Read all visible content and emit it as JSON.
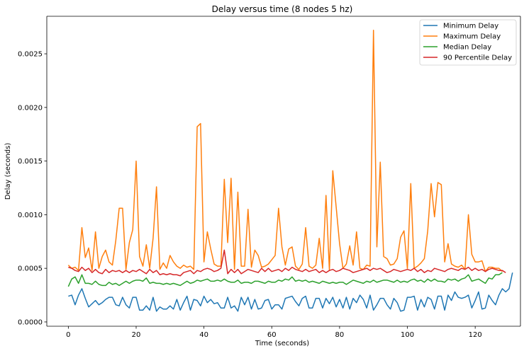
{
  "chart_data": {
    "type": "line",
    "title": "Delay versus time (8 nodes 5 hz)",
    "xlabel": "Time (seconds)",
    "ylabel": "Delay (seconds)",
    "xlim": [
      -6.35,
      133.35
    ],
    "ylim": [
      -4e-05,
      0.00285
    ],
    "xticks": [
      0,
      20,
      40,
      60,
      80,
      100,
      120
    ],
    "xtick_labels": [
      "0",
      "20",
      "40",
      "60",
      "80",
      "100",
      "120"
    ],
    "yticks": [
      0.0,
      0.0005,
      0.001,
      0.0015,
      0.002,
      0.0025
    ],
    "ytick_labels": [
      "0.0000",
      "0.0005",
      "0.0010",
      "0.0015",
      "0.0020",
      "0.0025"
    ],
    "grid": false,
    "legend_position": "top-right",
    "series": [
      {
        "name": "Minimum Delay",
        "color": "#1f77b4",
        "values": [
          0.00024,
          0.00025,
          0.00016,
          0.00025,
          0.00031,
          0.00022,
          0.00014,
          0.00017,
          0.0002,
          0.00016,
          0.00018,
          0.00021,
          0.00023,
          0.00023,
          0.00016,
          0.00015,
          0.00023,
          0.00016,
          0.00013,
          0.00023,
          0.00023,
          0.00011,
          0.00011,
          0.00015,
          0.00011,
          0.00023,
          0.0001,
          0.00014,
          0.00012,
          0.00012,
          0.00015,
          0.00012,
          0.00021,
          0.00011,
          0.00018,
          0.00024,
          0.00011,
          0.00021,
          0.0002,
          0.00015,
          0.00024,
          0.00018,
          0.00021,
          0.00017,
          0.00018,
          0.00013,
          0.00013,
          0.00023,
          0.00013,
          0.00015,
          0.0001,
          0.00023,
          0.00016,
          0.00023,
          0.00012,
          0.00021,
          0.00012,
          0.00013,
          0.0002,
          0.00021,
          0.00012,
          0.00016,
          0.00016,
          0.00012,
          0.00022,
          0.00023,
          0.00024,
          0.00019,
          0.00015,
          0.00022,
          0.00024,
          0.00013,
          0.00013,
          0.00022,
          0.00022,
          0.00013,
          0.00022,
          0.00017,
          0.00023,
          0.00014,
          0.00021,
          0.00013,
          0.00023,
          0.00012,
          0.00022,
          0.00018,
          0.00025,
          0.00021,
          0.00013,
          0.00025,
          0.00011,
          0.00016,
          0.00022,
          0.00022,
          0.00016,
          0.00012,
          0.00022,
          0.00018,
          0.0001,
          0.00011,
          0.00023,
          0.00023,
          0.00024,
          0.00011,
          0.00021,
          0.00014,
          0.00023,
          0.00021,
          0.00012,
          0.00024,
          0.00024,
          0.00011,
          0.00025,
          0.0002,
          0.00028,
          0.00023,
          0.00022,
          0.00023,
          0.00025,
          0.00013,
          0.0002,
          0.00028,
          0.00012,
          0.00013,
          0.00025,
          0.0002,
          0.00016,
          0.00025,
          0.00031,
          0.00028,
          0.00031,
          0.00046
        ]
      },
      {
        "name": "Maximum Delay",
        "color": "#ff7f0e",
        "values": [
          0.00053,
          0.0005,
          0.00051,
          0.00048,
          0.00088,
          0.0006,
          0.00069,
          0.00048,
          0.00084,
          0.0005,
          0.00061,
          0.00067,
          0.00056,
          0.00053,
          0.00076,
          0.00106,
          0.00106,
          0.00049,
          0.00074,
          0.00086,
          0.0015,
          0.00061,
          0.00052,
          0.00072,
          0.0005,
          0.00078,
          0.00126,
          0.00049,
          0.00055,
          0.0005,
          0.00062,
          0.00056,
          0.00052,
          0.0005,
          0.00053,
          0.00051,
          0.00052,
          0.00049,
          0.00182,
          0.00185,
          0.00056,
          0.00084,
          0.00068,
          0.00054,
          0.00052,
          0.00052,
          0.00133,
          0.00074,
          0.00134,
          0.00049,
          0.00121,
          0.00052,
          0.00052,
          0.00105,
          0.00051,
          0.00067,
          0.00062,
          0.00051,
          0.00052,
          0.00054,
          0.00058,
          0.00062,
          0.00106,
          0.0007,
          0.00053,
          0.00068,
          0.0007,
          0.00052,
          0.00049,
          0.00054,
          0.00088,
          0.00052,
          0.0005,
          0.00053,
          0.00078,
          0.0005,
          0.00118,
          0.00048,
          0.00141,
          0.00107,
          0.00073,
          0.0005,
          0.00054,
          0.00071,
          0.00053,
          0.00084,
          0.0005,
          0.00049,
          0.00053,
          0.00052,
          0.00272,
          0.0007,
          0.00149,
          0.00061,
          0.00059,
          0.00053,
          0.00054,
          0.00059,
          0.00079,
          0.00085,
          0.0005,
          0.00129,
          0.0005,
          0.00052,
          0.00055,
          0.00059,
          0.00085,
          0.00129,
          0.00098,
          0.0013,
          0.00128,
          0.00056,
          0.00073,
          0.00054,
          0.00052,
          0.00051,
          0.00053,
          0.00049,
          0.001,
          0.00063,
          0.00056,
          0.00056,
          0.00057,
          0.00047,
          0.00051,
          0.00051,
          0.0005,
          0.0005,
          0.00047
        ]
      },
      {
        "name": "Median Delay",
        "color": "#2ca02c",
        "values": [
          0.00033,
          0.0004,
          0.00042,
          0.00036,
          0.00044,
          0.00036,
          0.00036,
          0.00035,
          0.00038,
          0.00035,
          0.00034,
          0.00034,
          0.00037,
          0.00035,
          0.00036,
          0.00034,
          0.00036,
          0.00038,
          0.00036,
          0.00038,
          0.00039,
          0.00039,
          0.00038,
          0.00041,
          0.00036,
          0.00037,
          0.00036,
          0.00036,
          0.00035,
          0.00036,
          0.00035,
          0.00036,
          0.00035,
          0.00034,
          0.00036,
          0.00038,
          0.00036,
          0.00037,
          0.00039,
          0.00038,
          0.00039,
          0.0004,
          0.00038,
          0.00038,
          0.00039,
          0.00038,
          0.0004,
          0.00038,
          0.00037,
          0.00037,
          0.00039,
          0.00036,
          0.00037,
          0.00037,
          0.00036,
          0.00038,
          0.00038,
          0.00037,
          0.00036,
          0.00038,
          0.00037,
          0.00037,
          0.00039,
          0.00038,
          0.0004,
          0.00039,
          0.00042,
          0.00038,
          0.00039,
          0.00038,
          0.00039,
          0.00037,
          0.00038,
          0.00037,
          0.00036,
          0.00038,
          0.00037,
          0.00036,
          0.00037,
          0.00036,
          0.00037,
          0.00037,
          0.00035,
          0.00037,
          0.00039,
          0.00038,
          0.00037,
          0.00036,
          0.00038,
          0.00037,
          0.00039,
          0.00037,
          0.00038,
          0.00039,
          0.00039,
          0.00038,
          0.00037,
          0.00039,
          0.00037,
          0.00038,
          0.00037,
          0.00039,
          0.0004,
          0.00038,
          0.00039,
          0.00037,
          0.0004,
          0.00038,
          0.0004,
          0.00038,
          0.00038,
          0.00037,
          0.0004,
          0.00039,
          0.0004,
          0.00038,
          0.0004,
          0.00041,
          0.00044,
          0.00038,
          0.00039,
          0.0004,
          0.00038,
          0.00036,
          0.00041,
          0.0004,
          0.00044,
          0.00044,
          0.00046
        ]
      },
      {
        "name": "90 Percentile Delay",
        "color": "#d62728",
        "values": [
          0.00051,
          0.0005,
          0.00048,
          0.00047,
          0.00051,
          0.00048,
          0.0005,
          0.00046,
          0.00049,
          0.00046,
          0.00045,
          0.00049,
          0.00046,
          0.00048,
          0.00047,
          0.00048,
          0.00046,
          0.00048,
          0.00046,
          0.00048,
          0.00047,
          0.00049,
          0.00047,
          0.00045,
          0.00049,
          0.00046,
          0.00048,
          0.00044,
          0.00045,
          0.00044,
          0.00045,
          0.00044,
          0.00044,
          0.00043,
          0.00046,
          0.00047,
          0.00048,
          0.00045,
          0.00048,
          0.00047,
          0.00049,
          0.0005,
          0.00049,
          0.00047,
          0.00048,
          0.0005,
          0.00067,
          0.00045,
          0.00049,
          0.00046,
          0.00049,
          0.00045,
          0.00047,
          0.00049,
          0.00048,
          0.00047,
          0.00046,
          0.0005,
          0.00047,
          0.0005,
          0.00047,
          0.00048,
          0.00049,
          0.00047,
          0.0005,
          0.00048,
          0.00051,
          0.00049,
          0.00048,
          0.00047,
          0.00049,
          0.00047,
          0.00048,
          0.00049,
          0.00046,
          0.00048,
          0.00046,
          0.00048,
          0.00049,
          0.00047,
          0.00048,
          0.0005,
          0.00049,
          0.00048,
          0.00046,
          0.00047,
          0.00048,
          0.00049,
          0.0005,
          0.00048,
          0.0005,
          0.00049,
          0.0005,
          0.00048,
          0.00046,
          0.00047,
          0.00049,
          0.00048,
          0.00047,
          0.00048,
          0.00049,
          0.00048,
          0.0005,
          0.00047,
          0.00049,
          0.00046,
          0.00048,
          0.00047,
          0.0005,
          0.00049,
          0.00048,
          0.00047,
          0.00049,
          0.0005,
          0.00049,
          0.00048,
          0.0005,
          0.00049,
          0.00051,
          0.00048,
          0.0005,
          0.00048,
          0.00049,
          0.00047,
          0.00049,
          0.0005,
          0.00049,
          0.00048,
          0.00048,
          0.00046
        ]
      }
    ]
  }
}
